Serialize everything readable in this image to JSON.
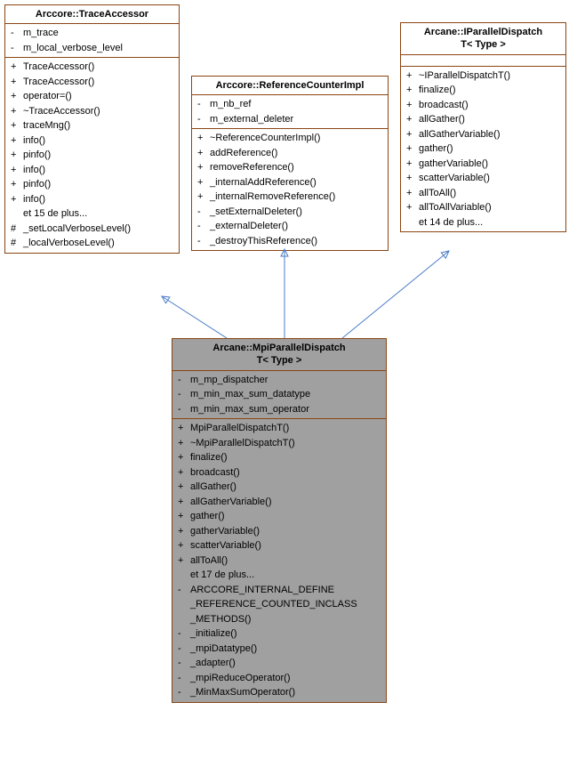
{
  "colors": {
    "border": "#8b4513",
    "bg_normal": "#ffffff",
    "bg_highlight": "#a0a0a0",
    "arrow": "#4a7bc8"
  },
  "classes": {
    "traceAccessor": {
      "title": "Arccore::TraceAccessor",
      "attrs": [
        {
          "vis": "-",
          "name": "m_trace"
        },
        {
          "vis": "-",
          "name": "m_local_verbose_level"
        }
      ],
      "ops": [
        {
          "vis": "+",
          "name": "TraceAccessor()"
        },
        {
          "vis": "+",
          "name": "TraceAccessor()"
        },
        {
          "vis": "+",
          "name": "operator=()"
        },
        {
          "vis": "+",
          "name": "~TraceAccessor()"
        },
        {
          "vis": "+",
          "name": "traceMng()"
        },
        {
          "vis": "+",
          "name": "info()"
        },
        {
          "vis": "+",
          "name": "pinfo()"
        },
        {
          "vis": "+",
          "name": "info()"
        },
        {
          "vis": "+",
          "name": "pinfo()"
        },
        {
          "vis": "+",
          "name": "info()"
        },
        {
          "vis": "",
          "name": "et 15 de plus..."
        },
        {
          "vis": "#",
          "name": "_setLocalVerboseLevel()"
        },
        {
          "vis": "#",
          "name": "_localVerboseLevel()"
        }
      ]
    },
    "refCounter": {
      "title": "Arccore::ReferenceCounterImpl",
      "attrs": [
        {
          "vis": "-",
          "name": "m_nb_ref"
        },
        {
          "vis": "-",
          "name": "m_external_deleter"
        }
      ],
      "ops": [
        {
          "vis": "+",
          "name": "~ReferenceCounterImpl()"
        },
        {
          "vis": "+",
          "name": "addReference()"
        },
        {
          "vis": "+",
          "name": "removeReference()"
        },
        {
          "vis": "+",
          "name": "_internalAddReference()"
        },
        {
          "vis": "+",
          "name": "_internalRemoveReference()"
        },
        {
          "vis": "-",
          "name": "_setExternalDeleter()"
        },
        {
          "vis": "-",
          "name": "_externalDeleter()"
        },
        {
          "vis": "-",
          "name": "_destroyThisReference()"
        }
      ]
    },
    "parallelDispatch": {
      "title1": "Arcane::IParallelDispatch",
      "title2": "T< Type >",
      "attrs": [],
      "ops": [
        {
          "vis": "+",
          "name": "~IParallelDispatchT()"
        },
        {
          "vis": "+",
          "name": "finalize()"
        },
        {
          "vis": "+",
          "name": "broadcast()"
        },
        {
          "vis": "+",
          "name": "allGather()"
        },
        {
          "vis": "+",
          "name": "allGatherVariable()"
        },
        {
          "vis": "+",
          "name": "gather()"
        },
        {
          "vis": "+",
          "name": "gatherVariable()"
        },
        {
          "vis": "+",
          "name": "scatterVariable()"
        },
        {
          "vis": "+",
          "name": "allToAll()"
        },
        {
          "vis": "+",
          "name": "allToAllVariable()"
        },
        {
          "vis": "",
          "name": "et 14 de plus..."
        }
      ]
    },
    "mpiDispatch": {
      "title1": "Arcane::MpiParallelDispatch",
      "title2": "T< Type >",
      "attrs": [
        {
          "vis": "-",
          "name": "m_mp_dispatcher"
        },
        {
          "vis": "-",
          "name": "m_min_max_sum_datatype"
        },
        {
          "vis": "-",
          "name": "m_min_max_sum_operator"
        }
      ],
      "ops": [
        {
          "vis": "+",
          "name": "MpiParallelDispatchT()"
        },
        {
          "vis": "+",
          "name": "~MpiParallelDispatchT()"
        },
        {
          "vis": "+",
          "name": "finalize()"
        },
        {
          "vis": "+",
          "name": "broadcast()"
        },
        {
          "vis": "+",
          "name": "allGather()"
        },
        {
          "vis": "+",
          "name": "allGatherVariable()"
        },
        {
          "vis": "+",
          "name": "gather()"
        },
        {
          "vis": "+",
          "name": "gatherVariable()"
        },
        {
          "vis": "+",
          "name": "scatterVariable()"
        },
        {
          "vis": "+",
          "name": "allToAll()"
        },
        {
          "vis": "",
          "name": "et 17 de plus..."
        },
        {
          "vis": "-",
          "name": "ARCCORE_INTERNAL_DEFINE"
        },
        {
          "vis": "",
          "name": "_REFERENCE_COUNTED_INCLASS"
        },
        {
          "vis": "",
          "name": "_METHODS()"
        },
        {
          "vis": "-",
          "name": "_initialize()"
        },
        {
          "vis": "-",
          "name": "_mpiDatatype()"
        },
        {
          "vis": "-",
          "name": "_adapter()"
        },
        {
          "vis": "-",
          "name": "_mpiReduceOperator()"
        },
        {
          "vis": "-",
          "name": "_MinMaxSumOperator()"
        }
      ]
    }
  }
}
